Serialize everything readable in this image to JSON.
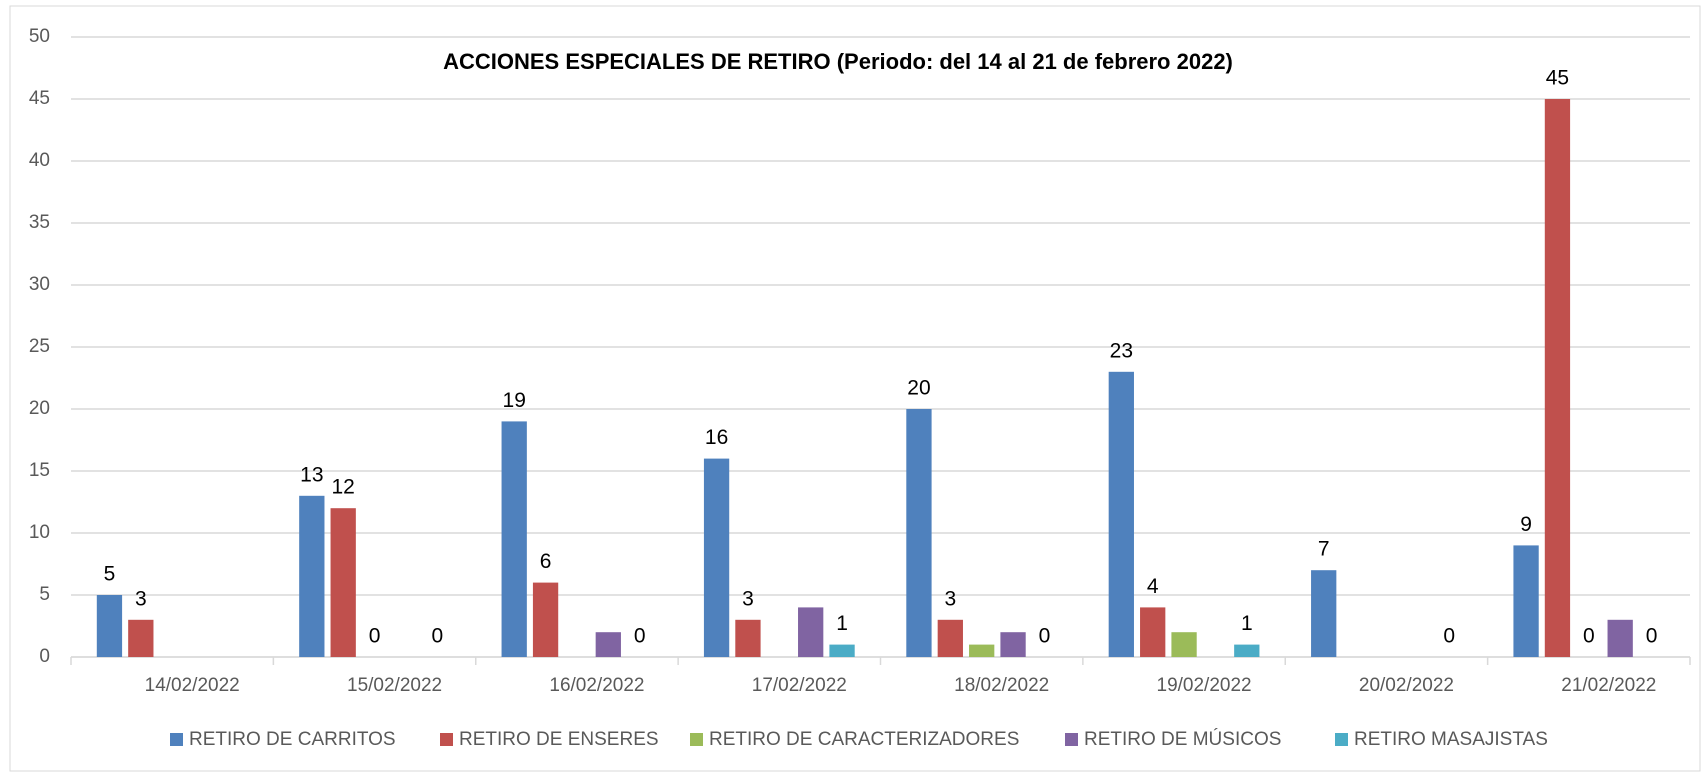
{
  "chart_data": {
    "type": "bar",
    "title": "ACCIONES ESPECIALES DE RETIRO (Periodo: del 14 al 21 de febrero 2022)",
    "categories": [
      "14/02/2022",
      "15/02/2022",
      "16/02/2022",
      "17/02/2022",
      "18/02/2022",
      "19/02/2022",
      "20/02/2022",
      "21/02/2022"
    ],
    "series": [
      {
        "name": "RETIRO DE CARRITOS",
        "color": "#4f81bd",
        "values": [
          5,
          13,
          19,
          16,
          20,
          23,
          7,
          9
        ]
      },
      {
        "name": "RETIRO DE ENSERES",
        "color": "#c0504d",
        "values": [
          3,
          12,
          6,
          3,
          3,
          4,
          null,
          45
        ]
      },
      {
        "name": "RETIRO DE CARACTERIZADORES",
        "color": "#9bbb59",
        "values": [
          null,
          0,
          null,
          null,
          1,
          2,
          null,
          0
        ],
        "value_labels": [
          null,
          "0",
          null,
          null,
          null,
          null,
          null,
          "0"
        ]
      },
      {
        "name": "RETIRO DE MÚSICOS",
        "color": "#8064a2",
        "values": [
          null,
          null,
          2,
          4,
          2,
          null,
          null,
          3
        ],
        "value_labels": [
          null,
          null,
          null,
          null,
          null,
          null,
          null,
          null
        ]
      },
      {
        "name": "RETIRO MASAJISTAS",
        "color": "#4bacc6",
        "values": [
          null,
          0,
          0,
          1,
          0,
          1,
          0,
          0
        ]
      }
    ],
    "ylim": [
      0,
      50
    ],
    "yticks": [
      0,
      5,
      10,
      15,
      20,
      25,
      30,
      35,
      40,
      45,
      50
    ],
    "grid": true,
    "legend": "bottom"
  }
}
